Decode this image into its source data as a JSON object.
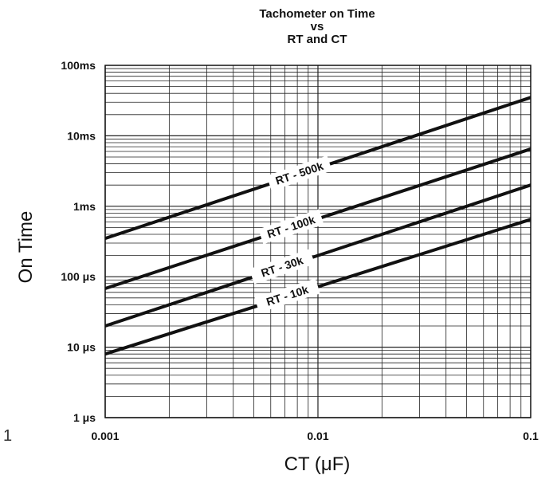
{
  "chart_data": {
    "type": "line",
    "title": [
      "Tachometer on Time",
      "vs",
      "RT and CT"
    ],
    "xlabel": "CT (μF)",
    "ylabel": "On Time",
    "x_scale": "log",
    "y_scale": "log",
    "xlim": [
      0.001,
      0.1
    ],
    "ylim_seconds": [
      1e-06,
      0.1
    ],
    "x_ticks": [
      {
        "value": 0.001,
        "label": "0.001"
      },
      {
        "value": 0.01,
        "label": "0.01"
      },
      {
        "value": 0.1,
        "label": "0.1"
      }
    ],
    "y_ticks": [
      {
        "value": 0.1,
        "label": "100ms"
      },
      {
        "value": 0.01,
        "label": "10ms"
      },
      {
        "value": 0.001,
        "label": "1ms"
      },
      {
        "value": 0.0001,
        "label": "100 μs"
      },
      {
        "value": 1e-05,
        "label": "10 μs"
      },
      {
        "value": 1e-06,
        "label": "1 μs"
      }
    ],
    "grid": true,
    "series": [
      {
        "name": "RT - 500k",
        "x": [
          0.001,
          0.1
        ],
        "y": [
          0.00035,
          0.035
        ]
      },
      {
        "name": "RT - 100k",
        "x": [
          0.001,
          0.1
        ],
        "y": [
          6.8e-05,
          0.0065
        ]
      },
      {
        "name": "RT - 30k",
        "x": [
          0.001,
          0.1
        ],
        "y": [
          2e-05,
          0.002
        ]
      },
      {
        "name": "RT - 10k",
        "x": [
          0.001,
          0.1
        ],
        "y": [
          8e-06,
          0.00065
        ]
      }
    ],
    "stray_text": "1"
  }
}
